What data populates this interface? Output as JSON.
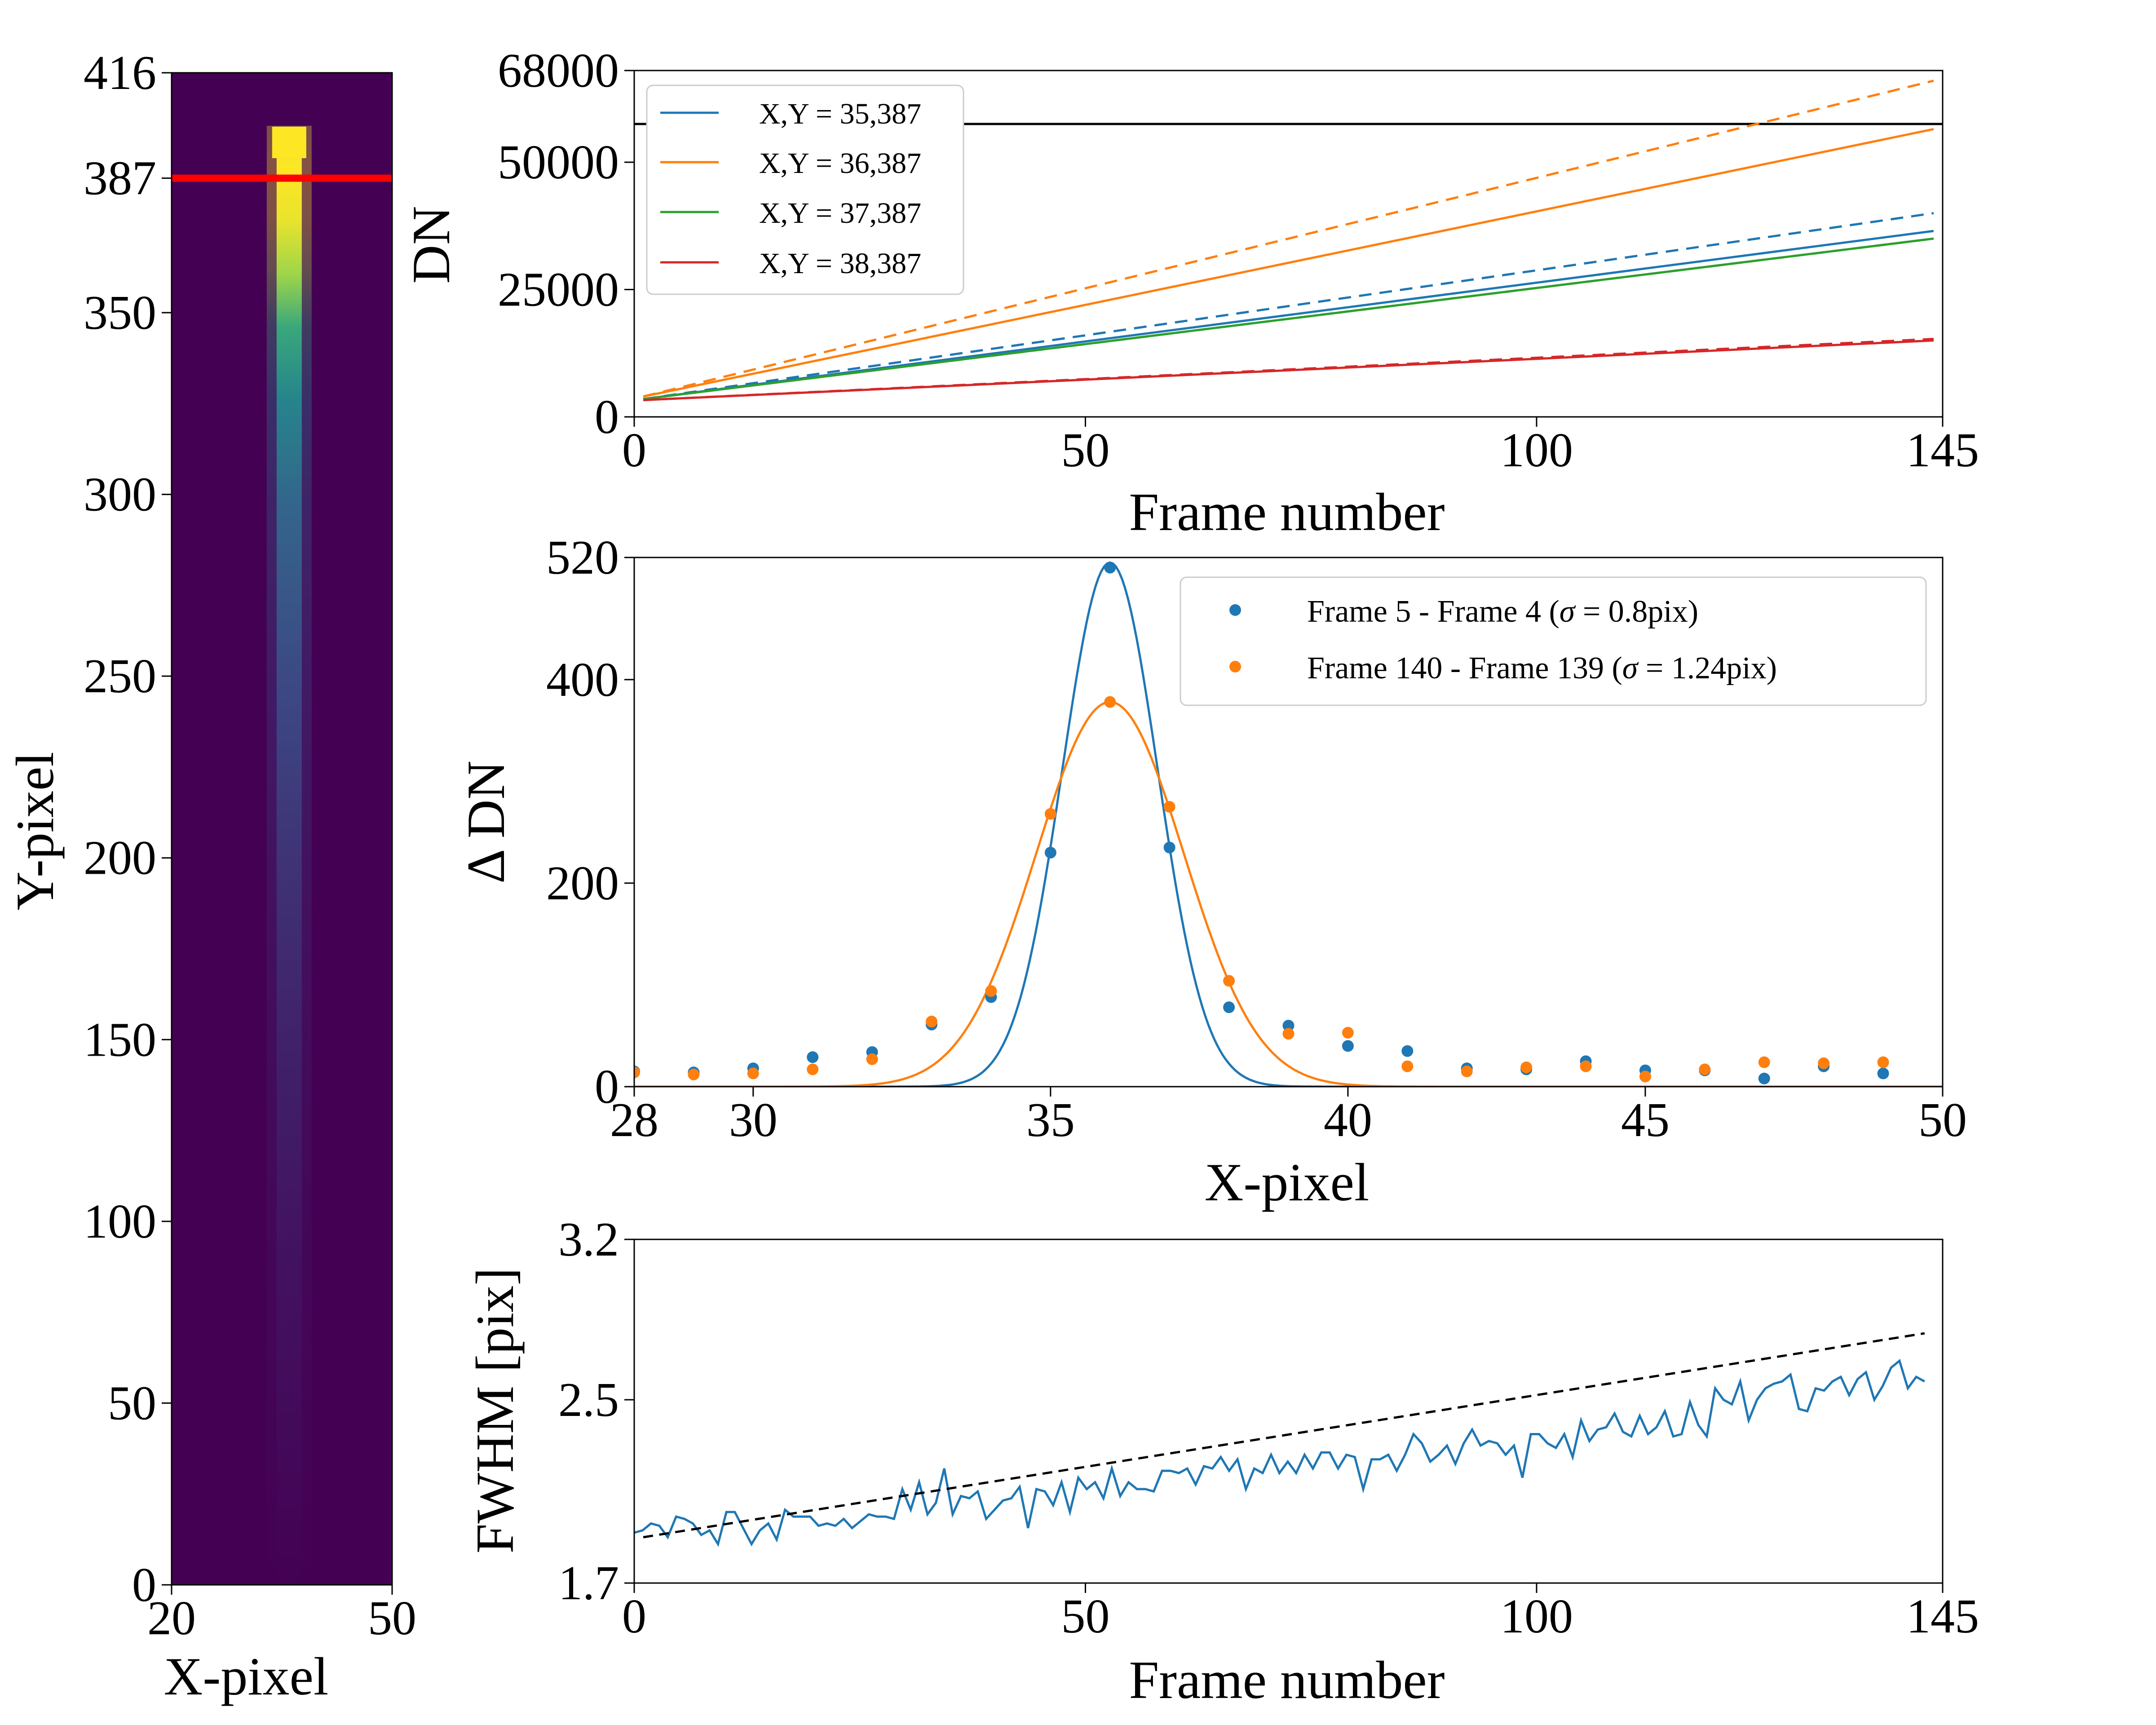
{
  "chart_data": [
    {
      "id": "image_panel",
      "type": "heatmap",
      "title": "",
      "xlabel": "X-pixel",
      "ylabel": "Y-pixel",
      "xlim": [
        20,
        50
      ],
      "ylim": [
        0,
        416
      ],
      "xticks": [
        "20",
        "50"
      ],
      "yticks": [
        "0",
        "50",
        "100",
        "150",
        "200",
        "250",
        "300",
        "350",
        "387",
        "416"
      ],
      "colormap": "viridis",
      "marker_row": 387,
      "marker_color": "#ff0000",
      "background_color": "#440154",
      "trail": {
        "x_center": 36,
        "rows": [
          {
            "y": 405,
            "level": 0.95
          },
          {
            "y": 395,
            "level": 1.0
          },
          {
            "y": 380,
            "level": 0.97
          },
          {
            "y": 365,
            "level": 0.85
          },
          {
            "y": 350,
            "level": 0.6
          },
          {
            "y": 330,
            "level": 0.45
          },
          {
            "y": 300,
            "level": 0.32
          },
          {
            "y": 250,
            "level": 0.22
          },
          {
            "y": 200,
            "level": 0.15
          },
          {
            "y": 150,
            "level": 0.1
          },
          {
            "y": 100,
            "level": 0.06
          },
          {
            "y": 50,
            "level": 0.03
          },
          {
            "y": 0,
            "level": 0.0
          }
        ]
      }
    },
    {
      "id": "ramp_panel",
      "type": "line",
      "xlabel": "Frame number",
      "ylabel": "DN",
      "xlim": [
        0,
        145
      ],
      "ylim": [
        0,
        68000
      ],
      "xticks": [
        "0",
        "50",
        "100",
        "145"
      ],
      "yticks": [
        "0",
        "25000",
        "50000",
        "68000"
      ],
      "saturation_level": 57500,
      "series": [
        {
          "name": "X,Y = 35,387",
          "color": "#1f77b4",
          "x": [
            1,
            144
          ],
          "values": [
            3500,
            36500
          ],
          "ideal_values": [
            3500,
            40000
          ]
        },
        {
          "name": "X,Y = 36,387",
          "color": "#ff7f0e",
          "x": [
            1,
            144
          ],
          "values": [
            4000,
            56500
          ],
          "ideal_values": [
            4000,
            66000
          ]
        },
        {
          "name": "X,Y = 37,387",
          "color": "#2ca02c",
          "x": [
            1,
            144
          ],
          "values": [
            3500,
            35000
          ],
          "ideal_values": [
            3500,
            35000
          ]
        },
        {
          "name": "X,Y = 38,387",
          "color": "#d62728",
          "x": [
            1,
            144
          ],
          "values": [
            3300,
            15000
          ],
          "ideal_values": [
            3300,
            15300
          ]
        }
      ],
      "legend": "top-left"
    },
    {
      "id": "profile_panel",
      "type": "scatter",
      "xlabel": "X-pixel",
      "ylabel": "Δ DN",
      "xlim": [
        28,
        50
      ],
      "ylim": [
        0,
        520
      ],
      "xticks": [
        "28",
        "30",
        "35",
        "40",
        "45",
        "50"
      ],
      "yticks": [
        "0",
        "200",
        "400",
        "520"
      ],
      "series": [
        {
          "name": "Frame 5 - Frame 4  (σ = 0.8pix)",
          "legend_main": "Frame 5 - Frame 4  (",
          "legend_sigma": "σ",
          "legend_eq": " = ",
          "legend_tail": "0.8pix)",
          "color": "#1f77b4",
          "x": [
            28,
            29,
            30,
            31,
            32,
            33,
            34,
            35,
            36,
            37,
            38,
            39,
            40,
            41,
            42,
            43,
            44,
            45,
            46,
            47,
            48,
            49
          ],
          "values": [
            15,
            14,
            18,
            29,
            34,
            61,
            88,
            230,
            510,
            235,
            78,
            60,
            40,
            35,
            18,
            17,
            25,
            16,
            16,
            8,
            20,
            13
          ],
          "fit": {
            "center": 36,
            "sigma": 0.8,
            "amplitude": 515
          }
        },
        {
          "name": "Frame 140 - Frame 139 (σ = 1.24pix)",
          "legend_main": "Frame 140 - Frame 139 (",
          "legend_sigma": "σ",
          "legend_eq": " = ",
          "legend_tail": "1.24pix)",
          "color": "#ff7f0e",
          "x": [
            28,
            29,
            30,
            31,
            32,
            33,
            34,
            35,
            36,
            37,
            38,
            39,
            40,
            41,
            42,
            43,
            44,
            45,
            46,
            47,
            48,
            49
          ],
          "values": [
            14,
            12,
            13,
            17,
            27,
            64,
            94,
            268,
            378,
            275,
            104,
            52,
            53,
            20,
            15,
            19,
            20,
            10,
            17,
            24,
            23,
            24
          ],
          "fit": {
            "center": 36,
            "sigma": 1.24,
            "amplitude": 378
          }
        }
      ],
      "legend": "top-right"
    },
    {
      "id": "fwhm_panel",
      "type": "line",
      "xlabel": "Frame number",
      "ylabel": "FWHM [pix]",
      "xlim": [
        0,
        145
      ],
      "ylim": [
        1.7,
        3.2
      ],
      "xticks": [
        "0",
        "50",
        "100",
        "145"
      ],
      "yticks": [
        "1.7",
        "2.5",
        "3.2"
      ],
      "series": [
        {
          "name": "FWHM",
          "color": "#1f77b4",
          "x_start": 0,
          "values": [
            1.92,
            1.93,
            1.96,
            1.95,
            1.9,
            1.99,
            1.98,
            1.96,
            1.91,
            1.93,
            1.87,
            2.01,
            2.01,
            1.94,
            1.87,
            1.93,
            1.96,
            1.89,
            2.02,
            1.99,
            1.99,
            1.99,
            1.95,
            1.96,
            1.95,
            1.98,
            1.94,
            1.97,
            2.0,
            1.99,
            1.99,
            1.98,
            2.11,
            2.02,
            2.14,
            2.0,
            2.05,
            2.2,
            2.0,
            2.08,
            2.07,
            2.1,
            1.98,
            2.02,
            2.06,
            2.07,
            2.12,
            1.94,
            2.11,
            2.1,
            2.04,
            2.14,
            2.01,
            2.16,
            2.11,
            2.14,
            2.07,
            2.2,
            2.08,
            2.14,
            2.11,
            2.11,
            2.1,
            2.19,
            2.19,
            2.18,
            2.2,
            2.13,
            2.21,
            2.2,
            2.25,
            2.19,
            2.24,
            2.11,
            2.2,
            2.18,
            2.26,
            2.18,
            2.23,
            2.18,
            2.26,
            2.2,
            2.27,
            2.27,
            2.2,
            2.26,
            2.25,
            2.11,
            2.24,
            2.24,
            2.26,
            2.19,
            2.26,
            2.35,
            2.31,
            2.23,
            2.26,
            2.3,
            2.22,
            2.31,
            2.37,
            2.3,
            2.32,
            2.31,
            2.26,
            2.3,
            2.16,
            2.35,
            2.35,
            2.31,
            2.29,
            2.35,
            2.25,
            2.41,
            2.32,
            2.37,
            2.38,
            2.44,
            2.36,
            2.34,
            2.43,
            2.35,
            2.38,
            2.45,
            2.34,
            2.35,
            2.49,
            2.39,
            2.34,
            2.55,
            2.5,
            2.48,
            2.58,
            2.41,
            2.5,
            2.55,
            2.57,
            2.58,
            2.61,
            2.46,
            2.45,
            2.55,
            2.54,
            2.58,
            2.6,
            2.52,
            2.59,
            2.62,
            2.5,
            2.56,
            2.64,
            2.67,
            2.55,
            2.6,
            2.58
          ]
        }
      ],
      "trend": {
        "x": [
          1,
          143
        ],
        "values": [
          1.9,
          2.79
        ],
        "style": "dashed",
        "color": "#000000"
      }
    }
  ]
}
